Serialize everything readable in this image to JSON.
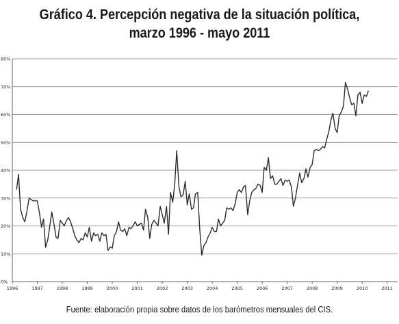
{
  "title": {
    "line1": "Gráfico 4. Percepción negativa de la situación política,",
    "line2": "marzo 1996 - mayo 2011"
  },
  "source": "Fuente: elaboración propia sobre datos de los barómetros mensuales del CIS.",
  "colors": {
    "line": "#2b2b2b",
    "grid": "#7a7a7a",
    "axis": "#3a3a3a"
  },
  "chart_data": {
    "type": "line",
    "title": "Gráfico 4. Percepción negativa de la situación política, marzo 1996 - mayo 2011",
    "xlabel": "",
    "ylabel": "",
    "xlim": [
      1996.0,
      2011.42
    ],
    "ylim": [
      0,
      80
    ],
    "grid": true,
    "legend": "none",
    "y_ticks": [
      "0%",
      "10%",
      "20%",
      "30%",
      "40%",
      "50%",
      "60%",
      "70%",
      "80%"
    ],
    "x_ticks": [
      "1996",
      "1997",
      "1998",
      "1999",
      "2000",
      "2001",
      "2002",
      "2003",
      "2004",
      "2005",
      "2006",
      "2007",
      "2008",
      "2009",
      "2010",
      "2011"
    ],
    "series": [
      {
        "name": "",
        "points": [
          [
            1996.17,
            33
          ],
          [
            1996.25,
            38.5
          ],
          [
            1996.33,
            26
          ],
          [
            1996.42,
            23
          ],
          [
            1996.5,
            21.5
          ],
          [
            1996.58,
            25
          ],
          [
            1996.67,
            30
          ],
          [
            1996.75,
            29.5
          ],
          [
            1996.83,
            29
          ],
          [
            1996.92,
            29
          ],
          [
            1997.0,
            29
          ],
          [
            1997.08,
            25
          ],
          [
            1997.17,
            19.5
          ],
          [
            1997.25,
            22.5
          ],
          [
            1997.33,
            12.3
          ],
          [
            1997.42,
            15
          ],
          [
            1997.5,
            20
          ],
          [
            1997.58,
            25
          ],
          [
            1997.67,
            20.5
          ],
          [
            1997.75,
            16
          ],
          [
            1997.83,
            15.5
          ],
          [
            1997.92,
            22
          ],
          [
            1998.0,
            21
          ],
          [
            1998.08,
            20
          ],
          [
            1998.17,
            22
          ],
          [
            1998.25,
            23
          ],
          [
            1998.33,
            21.5
          ],
          [
            1998.42,
            19
          ],
          [
            1998.5,
            16.5
          ],
          [
            1998.58,
            15
          ],
          [
            1998.67,
            14
          ],
          [
            1998.75,
            15.5
          ],
          [
            1998.83,
            15
          ],
          [
            1998.92,
            17.5
          ],
          [
            1999.0,
            16
          ],
          [
            1999.08,
            19.5
          ],
          [
            1999.17,
            14.5
          ],
          [
            1999.25,
            17.5
          ],
          [
            1999.33,
            16.5
          ],
          [
            1999.42,
            17
          ],
          [
            1999.5,
            14.5
          ],
          [
            1999.58,
            17.5
          ],
          [
            1999.67,
            16.5
          ],
          [
            1999.75,
            17
          ],
          [
            1999.83,
            11.2
          ],
          [
            1999.92,
            12.5
          ],
          [
            2000.0,
            12
          ],
          [
            2000.08,
            16.5
          ],
          [
            2000.17,
            18
          ],
          [
            2000.25,
            21.5
          ],
          [
            2000.33,
            18.5
          ],
          [
            2000.42,
            18
          ],
          [
            2000.5,
            19
          ],
          [
            2000.58,
            16.5
          ],
          [
            2000.67,
            19.5
          ],
          [
            2000.75,
            19
          ],
          [
            2000.83,
            20
          ],
          [
            2000.92,
            21.5
          ],
          [
            2001.0,
            20
          ],
          [
            2001.08,
            20.5
          ],
          [
            2001.17,
            21
          ],
          [
            2001.25,
            18.5
          ],
          [
            2001.33,
            26
          ],
          [
            2001.42,
            23
          ],
          [
            2001.5,
            15.5
          ],
          [
            2001.58,
            20.5
          ],
          [
            2001.67,
            22
          ],
          [
            2001.75,
            21
          ],
          [
            2001.83,
            20
          ],
          [
            2001.92,
            27
          ],
          [
            2002.0,
            24
          ],
          [
            2002.08,
            21
          ],
          [
            2002.17,
            27
          ],
          [
            2002.25,
            17
          ],
          [
            2002.33,
            32
          ],
          [
            2002.42,
            28.5
          ],
          [
            2002.5,
            35
          ],
          [
            2002.58,
            47
          ],
          [
            2002.67,
            34
          ],
          [
            2002.75,
            30.5
          ],
          [
            2002.83,
            31
          ],
          [
            2002.92,
            36
          ],
          [
            2003.0,
            27.5
          ],
          [
            2003.08,
            31.5
          ],
          [
            2003.17,
            26
          ],
          [
            2003.25,
            26.5
          ],
          [
            2003.33,
            31.5
          ],
          [
            2003.42,
            32
          ],
          [
            2003.5,
            19
          ],
          [
            2003.58,
            9.5
          ],
          [
            2003.67,
            13
          ],
          [
            2003.75,
            14
          ],
          [
            2003.83,
            16
          ],
          [
            2003.92,
            17.5
          ],
          [
            2004.0,
            19.5
          ],
          [
            2004.08,
            18
          ],
          [
            2004.17,
            18
          ],
          [
            2004.25,
            22.5
          ],
          [
            2004.33,
            20
          ],
          [
            2004.42,
            21
          ],
          [
            2004.5,
            22
          ],
          [
            2004.58,
            26.5
          ],
          [
            2004.67,
            26
          ],
          [
            2004.75,
            26.5
          ],
          [
            2004.83,
            25.5
          ],
          [
            2004.92,
            28
          ],
          [
            2005.0,
            32
          ],
          [
            2005.08,
            33
          ],
          [
            2005.17,
            32
          ],
          [
            2005.25,
            34
          ],
          [
            2005.33,
            34.5
          ],
          [
            2005.42,
            24
          ],
          [
            2005.5,
            29
          ],
          [
            2005.58,
            32
          ],
          [
            2005.67,
            33
          ],
          [
            2005.75,
            33.5
          ],
          [
            2005.83,
            35
          ],
          [
            2005.92,
            34.5
          ],
          [
            2006.0,
            32
          ],
          [
            2006.08,
            41
          ],
          [
            2006.17,
            40
          ],
          [
            2006.25,
            44.5
          ],
          [
            2006.33,
            37
          ],
          [
            2006.42,
            38
          ],
          [
            2006.5,
            35
          ],
          [
            2006.58,
            35
          ],
          [
            2006.67,
            36
          ],
          [
            2006.75,
            37
          ],
          [
            2006.83,
            34.5
          ],
          [
            2006.92,
            36.5
          ],
          [
            2007.0,
            36
          ],
          [
            2007.08,
            36.5
          ],
          [
            2007.17,
            34
          ],
          [
            2007.25,
            27
          ],
          [
            2007.33,
            30
          ],
          [
            2007.42,
            35
          ],
          [
            2007.5,
            39
          ],
          [
            2007.58,
            35.5
          ],
          [
            2007.67,
            37
          ],
          [
            2007.75,
            40.5
          ],
          [
            2007.83,
            37.5
          ],
          [
            2007.92,
            41
          ],
          [
            2008.0,
            42
          ],
          [
            2008.08,
            47
          ],
          [
            2008.17,
            47.5
          ],
          [
            2008.25,
            47
          ],
          [
            2008.33,
            47.5
          ],
          [
            2008.42,
            48.5
          ],
          [
            2008.5,
            48
          ],
          [
            2008.58,
            51
          ],
          [
            2008.67,
            54
          ],
          [
            2008.75,
            58
          ],
          [
            2008.83,
            60.5
          ],
          [
            2008.92,
            55
          ],
          [
            2009.0,
            53.5
          ],
          [
            2009.08,
            59.5
          ],
          [
            2009.17,
            61
          ],
          [
            2009.25,
            63
          ],
          [
            2009.33,
            71.5
          ],
          [
            2009.42,
            69
          ],
          [
            2009.5,
            66
          ],
          [
            2009.58,
            63.5
          ],
          [
            2009.67,
            64
          ],
          [
            2009.75,
            59.5
          ],
          [
            2009.83,
            67
          ],
          [
            2009.92,
            68
          ],
          [
            2010.0,
            64
          ],
          [
            2010.08,
            67
          ],
          [
            2010.17,
            66.5
          ],
          [
            2010.25,
            68.5
          ]
        ]
      }
    ]
  }
}
